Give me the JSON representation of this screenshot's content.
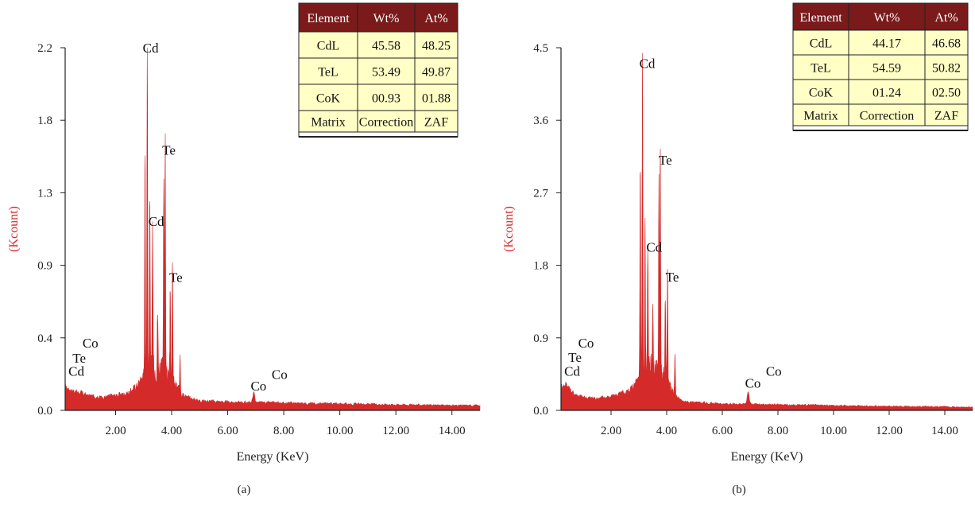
{
  "colors": {
    "spectrum": "#d42a2a",
    "table_header": "#7a1a1a",
    "table_cell": "#ffffc6",
    "axis": "#222222"
  },
  "chart_data": [
    {
      "type": "area",
      "panel_label": "(a)",
      "xlabel": "Energy (KeV)",
      "ylabel": "(Kcount)",
      "xlim": [
        0.2,
        15.0
      ],
      "ylim": [
        0,
        2.2
      ],
      "xticks": [
        "2.00",
        "4.00",
        "6.00",
        "8.00",
        "10.00",
        "12.00",
        "14.00"
      ],
      "yticks": [
        "0.0",
        "0.4",
        "0.9",
        "1.3",
        "1.8",
        "2.2"
      ],
      "baseline": [
        [
          0.2,
          0.14
        ],
        [
          0.5,
          0.12
        ],
        [
          1.0,
          0.09
        ],
        [
          1.5,
          0.08
        ],
        [
          2.0,
          0.09
        ],
        [
          2.5,
          0.11
        ],
        [
          2.8,
          0.16
        ],
        [
          3.0,
          0.22
        ],
        [
          4.5,
          0.08
        ],
        [
          5.0,
          0.06
        ],
        [
          6.0,
          0.05
        ],
        [
          8.0,
          0.045
        ],
        [
          10.0,
          0.04
        ],
        [
          12.0,
          0.035
        ],
        [
          14.0,
          0.03
        ],
        [
          15.0,
          0.03
        ]
      ],
      "peaks": [
        {
          "x": 3.13,
          "y": 2.09
        },
        {
          "x": 3.05,
          "y": 1.35
        },
        {
          "x": 3.22,
          "y": 1.12
        },
        {
          "x": 3.32,
          "y": 0.9
        },
        {
          "x": 3.77,
          "y": 1.48
        },
        {
          "x": 3.72,
          "y": 1.22
        },
        {
          "x": 4.03,
          "y": 0.72
        },
        {
          "x": 3.95,
          "y": 0.55
        },
        {
          "x": 3.5,
          "y": 0.35
        },
        {
          "x": 4.3,
          "y": 0.25
        },
        {
          "x": 6.93,
          "y": 0.06
        }
      ],
      "annotations": [
        {
          "text": "Cd",
          "x": 3.25,
          "y": 2.17
        },
        {
          "text": "Te",
          "x": 3.9,
          "y": 1.55
        },
        {
          "text": "Cd",
          "x": 3.45,
          "y": 1.12
        },
        {
          "text": "Te",
          "x": 4.15,
          "y": 0.78
        },
        {
          "text": "Co",
          "x": 1.1,
          "y": 0.38
        },
        {
          "text": "Te",
          "x": 0.7,
          "y": 0.29
        },
        {
          "text": "Cd",
          "x": 0.6,
          "y": 0.21
        },
        {
          "text": "Co",
          "x": 7.1,
          "y": 0.12
        },
        {
          "text": "Co",
          "x": 7.85,
          "y": 0.19
        }
      ],
      "table": {
        "headers": [
          "Element",
          "Wt%",
          "At%"
        ],
        "rows": [
          [
            "CdL",
            "45.58",
            "48.25"
          ],
          [
            "TeL",
            "53.49",
            "49.87"
          ],
          [
            "CoK",
            "00.93",
            "01.88"
          ],
          [
            "Matrix",
            "Correction",
            "ZAF"
          ]
        ]
      }
    },
    {
      "type": "area",
      "panel_label": "(b)",
      "xlabel": "Energy (KeV)",
      "ylabel": "(Kcount)",
      "xlim": [
        0.2,
        15.0
      ],
      "ylim": [
        0,
        4.5
      ],
      "xticks": [
        "2.00",
        "4.00",
        "6.00",
        "8.00",
        "10.00",
        "12.00",
        "14.00"
      ],
      "yticks": [
        "0.0",
        "0.9",
        "1.8",
        "2.7",
        "3.6",
        "4.5"
      ],
      "baseline": [
        [
          0.2,
          0.3
        ],
        [
          0.4,
          0.33
        ],
        [
          0.6,
          0.22
        ],
        [
          1.0,
          0.16
        ],
        [
          1.5,
          0.15
        ],
        [
          2.0,
          0.17
        ],
        [
          2.5,
          0.22
        ],
        [
          2.8,
          0.3
        ],
        [
          3.0,
          0.45
        ],
        [
          4.5,
          0.12
        ],
        [
          5.0,
          0.1
        ],
        [
          6.0,
          0.08
        ],
        [
          8.0,
          0.07
        ],
        [
          10.0,
          0.06
        ],
        [
          12.0,
          0.05
        ],
        [
          14.0,
          0.045
        ],
        [
          15.0,
          0.04
        ]
      ],
      "peaks": [
        {
          "x": 3.13,
          "y": 4.01
        },
        {
          "x": 3.05,
          "y": 2.7
        },
        {
          "x": 3.22,
          "y": 2.0
        },
        {
          "x": 3.32,
          "y": 1.55
        },
        {
          "x": 3.77,
          "y": 2.96
        },
        {
          "x": 3.72,
          "y": 2.3
        },
        {
          "x": 4.03,
          "y": 1.55
        },
        {
          "x": 3.95,
          "y": 1.1
        },
        {
          "x": 3.5,
          "y": 0.7
        },
        {
          "x": 4.3,
          "y": 0.5
        },
        {
          "x": 6.93,
          "y": 0.16
        }
      ],
      "annotations": [
        {
          "text": "Cd",
          "x": 3.3,
          "y": 4.25
        },
        {
          "text": "Te",
          "x": 3.95,
          "y": 3.05
        },
        {
          "text": "Cd",
          "x": 3.55,
          "y": 1.97
        },
        {
          "text": "Te",
          "x": 4.2,
          "y": 1.6
        },
        {
          "text": "Co",
          "x": 1.1,
          "y": 0.78
        },
        {
          "text": "Te",
          "x": 0.7,
          "y": 0.6
        },
        {
          "text": "Cd",
          "x": 0.6,
          "y": 0.43
        },
        {
          "text": "Co",
          "x": 7.1,
          "y": 0.28
        },
        {
          "text": "Co",
          "x": 7.85,
          "y": 0.43
        }
      ],
      "table": {
        "headers": [
          "Element",
          "Wt%",
          "At%"
        ],
        "rows": [
          [
            "CdL",
            "44.17",
            "46.68"
          ],
          [
            "TeL",
            "54.59",
            "50.82"
          ],
          [
            "CoK",
            "01.24",
            "02.50"
          ],
          [
            "Matrix",
            "Correction",
            "ZAF"
          ]
        ]
      }
    }
  ]
}
